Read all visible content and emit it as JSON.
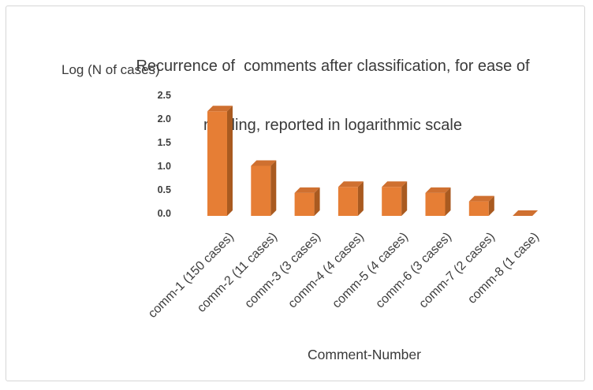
{
  "chart": {
    "title_line1": "Recurrence of  comments after classification, for ease of",
    "title_line2": "reading, reported in logarithmic scale",
    "y_axis_label": "Log (N of cases)",
    "x_axis_label": "Comment-Number"
  },
  "chart_data": {
    "type": "bar",
    "style": "3d",
    "title": "Recurrence of comments after classification, for ease of reading, reported in logarithmic scale",
    "xlabel": "Comment-Number",
    "ylabel": "Log (N of cases)",
    "categories": [
      "comm-1 (150 cases)",
      "comm-2 (11 cases)",
      "comm-3 (3 cases)",
      "comm-4 (4 cases)",
      "comm-5 (4 cases)",
      "comm-6 (3 cases)",
      "comm-7 (2 cases)",
      "comm-8 (1 case)"
    ],
    "cases_counts": [
      150,
      11,
      3,
      4,
      4,
      3,
      2,
      1
    ],
    "values": [
      2.176,
      1.041,
      0.477,
      0.602,
      0.602,
      0.477,
      0.301,
      0
    ],
    "yticks": [
      0.0,
      0.5,
      1.0,
      1.5,
      2.0,
      2.5
    ],
    "ylim": [
      0,
      2.5
    ],
    "grid": false,
    "legend": "none",
    "bar_front_color": "#E67E35",
    "bar_side_color": "#A95A20",
    "bar_top_color": "#CF7030"
  }
}
